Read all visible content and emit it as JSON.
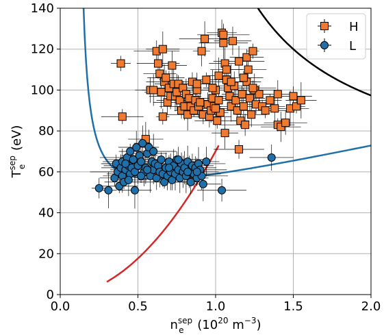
{
  "chart_data": {
    "type": "scatter",
    "xlabel": "n",
    "xlabel_sup": "sep",
    "xlabel_sub": "e",
    "xlabel_unit_prefix": " (10",
    "xlabel_unit_exp": "20",
    "xlabel_unit_mid": " m",
    "xlabel_unit_exp2": "−3",
    "xlabel_unit_suffix": ")",
    "ylabel": "T",
    "ylabel_sup": "sep",
    "ylabel_sub": "e",
    "ylabel_unit": " (eV)",
    "xlim": [
      0.0,
      2.0
    ],
    "ylim": [
      0,
      140
    ],
    "x_ticks": [
      "0.0",
      "0.5",
      "1.0",
      "1.5",
      "2.0"
    ],
    "y_ticks": [
      "0",
      "20",
      "40",
      "60",
      "80",
      "100",
      "120",
      "140"
    ],
    "grid": true,
    "legend_position": "top-right",
    "series": [
      {
        "name": "H",
        "marker": "square",
        "color": "#f07a30",
        "points": [
          [
            0.39,
            113
          ],
          [
            0.4,
            87
          ],
          [
            0.55,
            76
          ],
          [
            0.58,
            100
          ],
          [
            0.6,
            100
          ],
          [
            0.62,
            119
          ],
          [
            0.63,
            113
          ],
          [
            0.64,
            108
          ],
          [
            0.65,
            99
          ],
          [
            0.66,
            120
          ],
          [
            0.66,
            87
          ],
          [
            0.67,
            104
          ],
          [
            0.68,
            106
          ],
          [
            0.69,
            94
          ],
          [
            0.7,
            101
          ],
          [
            0.71,
            97
          ],
          [
            0.72,
            112
          ],
          [
            0.73,
            103
          ],
          [
            0.74,
            97
          ],
          [
            0.75,
            99
          ],
          [
            0.76,
            103
          ],
          [
            0.77,
            95
          ],
          [
            0.78,
            90
          ],
          [
            0.79,
            101
          ],
          [
            0.8,
            92
          ],
          [
            0.81,
            98
          ],
          [
            0.82,
            88
          ],
          [
            0.83,
            96
          ],
          [
            0.84,
            92
          ],
          [
            0.85,
            104
          ],
          [
            0.86,
            90
          ],
          [
            0.87,
            95
          ],
          [
            0.88,
            100
          ],
          [
            0.89,
            92
          ],
          [
            0.9,
            94
          ],
          [
            0.91,
            119
          ],
          [
            0.92,
            88
          ],
          [
            0.93,
            125
          ],
          [
            0.94,
            105
          ],
          [
            0.95,
            93
          ],
          [
            0.96,
            87
          ],
          [
            0.97,
            90
          ],
          [
            0.98,
            96
          ],
          [
            0.99,
            92
          ],
          [
            1.0,
            100
          ],
          [
            1.01,
            85
          ],
          [
            1.02,
            95
          ],
          [
            1.03,
            89
          ],
          [
            1.04,
            128
          ],
          [
            1.05,
            127
          ],
          [
            1.05,
            123
          ],
          [
            1.06,
            113
          ],
          [
            1.06,
            79
          ],
          [
            1.07,
            110
          ],
          [
            1.07,
            105
          ],
          [
            1.08,
            101
          ],
          [
            1.09,
            97
          ],
          [
            1.1,
            92
          ],
          [
            1.11,
            124
          ],
          [
            1.12,
            102
          ],
          [
            1.13,
            95
          ],
          [
            1.14,
            90
          ],
          [
            1.15,
            71
          ],
          [
            1.15,
            114
          ],
          [
            1.16,
            85
          ],
          [
            1.17,
            98
          ],
          [
            1.18,
            92
          ],
          [
            1.19,
            83
          ],
          [
            1.2,
            116
          ],
          [
            1.2,
            104
          ],
          [
            1.21,
            110
          ],
          [
            1.22,
            96
          ],
          [
            1.23,
            88
          ],
          [
            1.24,
            119
          ],
          [
            1.25,
            100
          ],
          [
            1.26,
            93
          ],
          [
            1.28,
            98
          ],
          [
            1.3,
            92
          ],
          [
            1.32,
            90
          ],
          [
            1.35,
            95
          ],
          [
            1.38,
            91
          ],
          [
            1.4,
            83
          ],
          [
            1.4,
            98
          ],
          [
            1.42,
            82
          ],
          [
            1.45,
            84
          ],
          [
            1.48,
            91
          ],
          [
            1.5,
            97
          ],
          [
            1.52,
            92
          ],
          [
            1.55,
            95
          ],
          [
            1.0,
            91
          ],
          [
            0.98,
            101
          ],
          [
            1.02,
            107
          ],
          [
            1.1,
            104
          ],
          [
            0.88,
            103
          ],
          [
            1.18,
            106
          ],
          [
            1.24,
            101
          ]
        ]
      },
      {
        "name": "L",
        "marker": "circle",
        "color": "#1f6fa8",
        "points": [
          [
            0.25,
            52
          ],
          [
            0.31,
            51
          ],
          [
            0.35,
            57
          ],
          [
            0.36,
            64
          ],
          [
            0.37,
            60
          ],
          [
            0.38,
            53
          ],
          [
            0.39,
            62
          ],
          [
            0.4,
            58
          ],
          [
            0.4,
            65
          ],
          [
            0.41,
            55
          ],
          [
            0.42,
            61
          ],
          [
            0.43,
            67
          ],
          [
            0.44,
            63
          ],
          [
            0.45,
            70
          ],
          [
            0.45,
            59
          ],
          [
            0.46,
            62
          ],
          [
            0.47,
            66
          ],
          [
            0.48,
            51
          ],
          [
            0.48,
            60
          ],
          [
            0.49,
            72
          ],
          [
            0.5,
            63
          ],
          [
            0.51,
            68
          ],
          [
            0.52,
            65
          ],
          [
            0.53,
            74
          ],
          [
            0.54,
            60
          ],
          [
            0.55,
            62
          ],
          [
            0.56,
            69
          ],
          [
            0.57,
            72
          ],
          [
            0.58,
            58
          ],
          [
            0.59,
            65
          ],
          [
            0.6,
            61
          ],
          [
            0.61,
            64
          ],
          [
            0.62,
            57
          ],
          [
            0.63,
            63
          ],
          [
            0.64,
            60
          ],
          [
            0.65,
            66
          ],
          [
            0.66,
            59
          ],
          [
            0.67,
            55
          ],
          [
            0.68,
            62
          ],
          [
            0.69,
            58
          ],
          [
            0.7,
            65
          ],
          [
            0.71,
            60
          ],
          [
            0.72,
            56
          ],
          [
            0.73,
            63
          ],
          [
            0.74,
            59
          ],
          [
            0.75,
            66
          ],
          [
            0.76,
            61
          ],
          [
            0.77,
            57
          ],
          [
            0.78,
            64
          ],
          [
            0.79,
            60
          ],
          [
            0.8,
            62
          ],
          [
            0.81,
            58
          ],
          [
            0.82,
            65
          ],
          [
            0.83,
            60
          ],
          [
            0.84,
            55
          ],
          [
            0.85,
            63
          ],
          [
            0.86,
            59
          ],
          [
            0.87,
            62
          ],
          [
            0.88,
            57
          ],
          [
            0.89,
            64
          ],
          [
            0.9,
            61
          ],
          [
            0.91,
            58
          ],
          [
            0.92,
            54
          ],
          [
            0.94,
            65
          ],
          [
            1.04,
            51
          ],
          [
            1.36,
            67
          ],
          [
            0.44,
            56
          ],
          [
            0.52,
            58
          ],
          [
            0.6,
            70
          ],
          [
            0.76,
            66
          ],
          [
            0.82,
            60
          ],
          [
            0.88,
            60
          ],
          [
            0.42,
            64
          ],
          [
            0.56,
            61
          ],
          [
            0.7,
            62
          ]
        ]
      }
    ],
    "curves": [
      {
        "name": "blue",
        "color": "#1f6fa8"
      },
      {
        "name": "black",
        "color": "#000000"
      },
      {
        "name": "red",
        "color": "#d62728"
      }
    ]
  }
}
